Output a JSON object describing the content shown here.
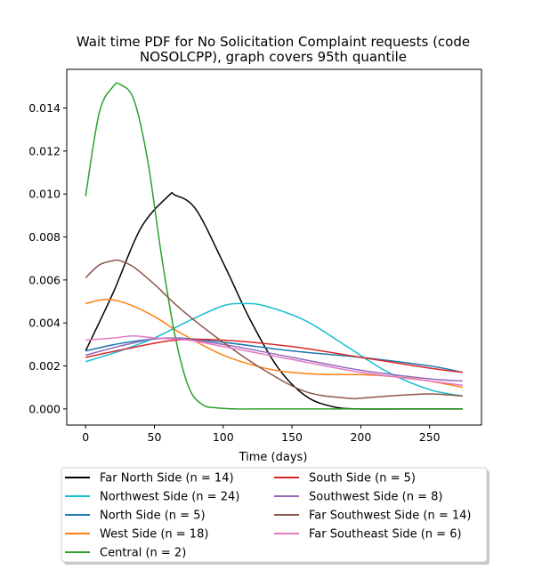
{
  "chart_data": {
    "type": "line",
    "title_lines": [
      "Wait time PDF for No Solicitation Complaint  requests (code",
      "NOSOLCPP), graph covers 95th quantile"
    ],
    "xlabel": "Time (days)",
    "ylabel": "",
    "xlim": [
      -13.7,
      287.7
    ],
    "ylim": [
      -0.00075,
      0.0158
    ],
    "xticks": [
      0,
      50,
      100,
      150,
      200,
      250
    ],
    "yticks": [
      0.0,
      0.002,
      0.004,
      0.006,
      0.008,
      0.01,
      0.012,
      0.014
    ],
    "ytick_labels": [
      "0.000",
      "0.002",
      "0.004",
      "0.006",
      "0.008",
      "0.010",
      "0.012",
      "0.014"
    ],
    "grid": false,
    "legend_placement": "below plot, two columns",
    "series": [
      {
        "name": "Far North Side (n = 14)",
        "color": "#000000",
        "x": [
          0,
          20,
          40,
          60,
          65,
          80,
          100,
          120,
          140,
          160,
          180,
          200,
          230,
          274
        ],
        "y": [
          0.0027,
          0.0054,
          0.0084,
          0.0099,
          0.00995,
          0.0093,
          0.0068,
          0.0041,
          0.0019,
          0.0006,
          0.0001,
          0.0,
          0.0,
          0.0
        ]
      },
      {
        "name": "Northwest Side (n = 24)",
        "color": "#17becf",
        "x": [
          0,
          25,
          50,
          75,
          100,
          115,
          130,
          160,
          190,
          220,
          250,
          274
        ],
        "y": [
          0.0022,
          0.0027,
          0.0033,
          0.0041,
          0.0048,
          0.0049,
          0.0048,
          0.0041,
          0.0029,
          0.0017,
          0.0009,
          0.0006
        ]
      },
      {
        "name": "North Side (n = 5)",
        "color": "#1f77b4",
        "x": [
          0,
          30,
          65,
          100,
          150,
          200,
          250,
          274
        ],
        "y": [
          0.0027,
          0.0031,
          0.0033,
          0.0031,
          0.0027,
          0.0024,
          0.002,
          0.0017
        ]
      },
      {
        "name": "West Side (n = 18)",
        "color": "#ff7f0e",
        "x": [
          0,
          15,
          30,
          50,
          70,
          100,
          130,
          150,
          175,
          200,
          225,
          250,
          274
        ],
        "y": [
          0.0049,
          0.0051,
          0.0049,
          0.0043,
          0.0035,
          0.0025,
          0.0019,
          0.0017,
          0.0016,
          0.0016,
          0.0015,
          0.0013,
          0.001
        ]
      },
      {
        "name": "Central (n = 2)",
        "color": "#2ca02c",
        "x": [
          0,
          10,
          20,
          25,
          35,
          45,
          55,
          65,
          75,
          85,
          95,
          110,
          130,
          274
        ],
        "y": [
          0.0099,
          0.0138,
          0.015,
          0.0151,
          0.0144,
          0.0116,
          0.0072,
          0.0034,
          0.001,
          0.0002,
          5e-05,
          0.0,
          0.0,
          0.0
        ]
      },
      {
        "name": "South Side (n = 5)",
        "color": "#d62728",
        "x": [
          0,
          30,
          65,
          100,
          150,
          200,
          250,
          274
        ],
        "y": [
          0.0024,
          0.0028,
          0.0032,
          0.0032,
          0.0029,
          0.0024,
          0.0019,
          0.0017
        ]
      },
      {
        "name": "Southwest Side (n = 8)",
        "color": "#9467bd",
        "x": [
          0,
          30,
          60,
          100,
          150,
          200,
          250,
          274
        ],
        "y": [
          0.0025,
          0.003,
          0.0033,
          0.003,
          0.0024,
          0.0018,
          0.0014,
          0.0013
        ]
      },
      {
        "name": "Far Southwest Side (n = 14)",
        "color": "#8c564b",
        "x": [
          0,
          10,
          20,
          25,
          35,
          50,
          70,
          100,
          130,
          160,
          190,
          200,
          220,
          250,
          274
        ],
        "y": [
          0.0061,
          0.0067,
          0.0069,
          0.0069,
          0.0066,
          0.0058,
          0.0046,
          0.0031,
          0.0018,
          0.0008,
          0.0005,
          0.0005,
          0.0006,
          0.0007,
          0.0006
        ]
      },
      {
        "name": "Far Southeast Side (n = 6)",
        "color": "#e377c2",
        "x": [
          0,
          20,
          35,
          50,
          75,
          100,
          150,
          200,
          250,
          274
        ],
        "y": [
          0.0032,
          0.0033,
          0.0034,
          0.0033,
          0.0032,
          0.0029,
          0.0023,
          0.0017,
          0.0013,
          0.0011
        ]
      }
    ]
  }
}
